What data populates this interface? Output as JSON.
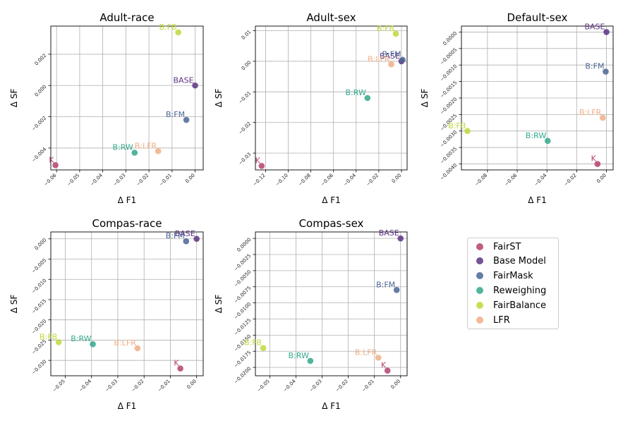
{
  "legend": {
    "entries": [
      {
        "label": "FairST",
        "color": "#b5416e"
      },
      {
        "label": "Base Model",
        "color": "#5d3282"
      },
      {
        "label": "FairMask",
        "color": "#4a6595"
      },
      {
        "label": "Reweighing",
        "color": "#31a88b"
      },
      {
        "label": "FairBalance",
        "color": "#bcd93c"
      },
      {
        "label": "LFR",
        "color": "#f0ae84"
      }
    ],
    "placement": "right"
  },
  "chart_data": [
    {
      "type": "scatter",
      "title": "Adult-race",
      "xlabel": "Δ F1",
      "ylabel": "Δ SF",
      "xlim": [
        -0.0625,
        0.0035
      ],
      "ylim": [
        -0.0054,
        0.0038
      ],
      "xticks": [
        -0.06,
        -0.05,
        -0.04,
        -0.03,
        -0.02,
        -0.01,
        0.0
      ],
      "xtick_labels": [
        "−0.06",
        "−0.05",
        "−0.04",
        "−0.03",
        "−0.02",
        "−0.01",
        "0.00"
      ],
      "yticks": [
        -0.004,
        -0.002,
        0.0,
        0.002
      ],
      "ytick_labels": [
        "−0.004",
        "−0.002",
        "0.000",
        "0.002"
      ],
      "grid": true,
      "points": [
        {
          "label": "K",
          "series": 0,
          "x": -0.0605,
          "y": -0.0051
        },
        {
          "label": "BASE",
          "series": 1,
          "x": 0.0,
          "y": 0.0
        },
        {
          "label": "B:FM",
          "series": 2,
          "x": -0.0038,
          "y": -0.0022
        },
        {
          "label": "B:RW",
          "series": 3,
          "x": -0.0262,
          "y": -0.0043
        },
        {
          "label": "B:FB",
          "series": 4,
          "x": -0.0073,
          "y": 0.0034
        },
        {
          "label": "B:LFR",
          "series": 5,
          "x": -0.016,
          "y": -0.0042
        }
      ]
    },
    {
      "type": "scatter",
      "title": "Adult-sex",
      "xlabel": "Δ F1",
      "ylabel": "Δ SF",
      "xlim": [
        -0.129,
        0.005
      ],
      "ylim": [
        -0.0355,
        0.0115
      ],
      "xticks": [
        -0.12,
        -0.1,
        -0.08,
        -0.06,
        -0.04,
        -0.02,
        0.0
      ],
      "xtick_labels": [
        "−0.12",
        "−0.10",
        "−0.08",
        "−0.06",
        "−0.04",
        "−0.02",
        "0.00"
      ],
      "yticks": [
        -0.03,
        -0.02,
        -0.01,
        0.0,
        0.01
      ],
      "ytick_labels": [
        "−0.03",
        "−0.02",
        "−0.01",
        "0.00",
        "0.01"
      ],
      "grid": true,
      "points": [
        {
          "label": "K",
          "series": 0,
          "x": -0.1235,
          "y": -0.0342
        },
        {
          "label": "BASE",
          "series": 1,
          "x": 0.0,
          "y": 0.0
        },
        {
          "label": "B:FM",
          "series": 2,
          "x": 0.001,
          "y": 0.0005
        },
        {
          "label": "B:RW",
          "series": 3,
          "x": -0.03,
          "y": -0.012
        },
        {
          "label": "B:FB",
          "series": 4,
          "x": -0.005,
          "y": 0.009
        },
        {
          "label": "B:LFR",
          "series": 5,
          "x": -0.009,
          "y": -0.001
        }
      ]
    },
    {
      "type": "scatter",
      "title": "Default-sex",
      "xlabel": "Δ F1",
      "ylabel": "Δ SF",
      "xlim": [
        -0.0975,
        0.0045
      ],
      "ylim": [
        -0.00418,
        0.00018
      ],
      "xticks": [
        -0.08,
        -0.06,
        -0.04,
        -0.02,
        0.0
      ],
      "xtick_labels": [
        "−0.08",
        "−0.06",
        "−0.04",
        "−0.02",
        "0.00"
      ],
      "yticks": [
        -0.004,
        -0.0035,
        -0.003,
        -0.0025,
        -0.002,
        -0.0015,
        -0.001,
        -0.0005,
        0.0
      ],
      "ytick_labels": [
        "−0.0040",
        "−0.0035",
        "−0.0030",
        "−0.0025",
        "−0.0020",
        "−0.0015",
        "−0.0010",
        "−0.0005",
        "0.0000"
      ],
      "grid": true,
      "points": [
        {
          "label": "K",
          "series": 0,
          "x": -0.006,
          "y": -0.004
        },
        {
          "label": "BASE",
          "series": 1,
          "x": 0.0,
          "y": 0.0
        },
        {
          "label": "B:FM",
          "series": 2,
          "x": -0.0005,
          "y": -0.0012
        },
        {
          "label": "B:RW",
          "series": 3,
          "x": -0.0395,
          "y": -0.0033
        },
        {
          "label": "B:FB",
          "series": 4,
          "x": -0.0935,
          "y": -0.003
        },
        {
          "label": "B:LFR",
          "series": 5,
          "x": -0.0025,
          "y": -0.0026
        }
      ]
    },
    {
      "type": "scatter",
      "title": "Compas-race",
      "xlabel": "Δ F1",
      "ylabel": "Δ SF",
      "xlim": [
        -0.0555,
        0.0025
      ],
      "ylim": [
        -0.0338,
        0.0017
      ],
      "xticks": [
        -0.05,
        -0.04,
        -0.03,
        -0.02,
        -0.01,
        0.0
      ],
      "xtick_labels": [
        "−0.05",
        "−0.04",
        "−0.03",
        "−0.02",
        "−0.01",
        "0.00"
      ],
      "yticks": [
        -0.03,
        -0.025,
        -0.02,
        -0.015,
        -0.01,
        -0.005,
        0.0
      ],
      "ytick_labels": [
        "−0.030",
        "−0.025",
        "−0.020",
        "−0.015",
        "−0.010",
        "−0.005",
        "0.000"
      ],
      "grid": true,
      "points": [
        {
          "label": "K",
          "series": 0,
          "x": -0.0062,
          "y": -0.032
        },
        {
          "label": "BASE",
          "series": 1,
          "x": 0.0,
          "y": 0.0
        },
        {
          "label": "B:FM",
          "series": 2,
          "x": -0.004,
          "y": -0.0006
        },
        {
          "label": "B:RW",
          "series": 3,
          "x": -0.0395,
          "y": -0.026
        },
        {
          "label": "B:FB",
          "series": 4,
          "x": -0.0525,
          "y": -0.0255
        },
        {
          "label": "B:LFR",
          "series": 5,
          "x": -0.0225,
          "y": -0.027
        }
      ]
    },
    {
      "type": "scatter",
      "title": "Compas-sex",
      "xlabel": "Δ F1",
      "ylabel": "Δ SF",
      "xlim": [
        -0.0555,
        0.0025
      ],
      "ylim": [
        -0.0213,
        0.001
      ],
      "xticks": [
        -0.05,
        -0.04,
        -0.03,
        -0.02,
        -0.01,
        0.0
      ],
      "xtick_labels": [
        "−0.05",
        "−0.04",
        "−0.03",
        "−0.02",
        "−0.01",
        "0.00"
      ],
      "yticks": [
        -0.02,
        -0.0175,
        -0.015,
        -0.0125,
        -0.01,
        -0.0075,
        -0.005,
        -0.0025,
        0.0
      ],
      "ytick_labels": [
        "−0.0200",
        "−0.0175",
        "−0.0150",
        "−0.0125",
        "−0.0100",
        "−0.0075",
        "−0.0050",
        "−0.0025",
        "0.0000"
      ],
      "grid": true,
      "points": [
        {
          "label": "K",
          "series": 0,
          "x": -0.005,
          "y": -0.0205
        },
        {
          "label": "BASE",
          "series": 1,
          "x": 0.0,
          "y": 0.0
        },
        {
          "label": "B:FM",
          "series": 2,
          "x": -0.0015,
          "y": -0.008
        },
        {
          "label": "B:RW",
          "series": 3,
          "x": -0.0345,
          "y": -0.019
        },
        {
          "label": "B:FB",
          "series": 4,
          "x": -0.0525,
          "y": -0.017
        },
        {
          "label": "B:LFR",
          "series": 5,
          "x": -0.0085,
          "y": -0.0185
        }
      ]
    }
  ]
}
